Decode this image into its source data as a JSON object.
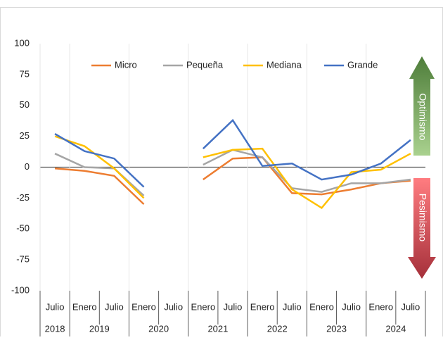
{
  "chart_data": {
    "type": "line",
    "categories": [
      "Julio",
      "Enero",
      "Julio",
      "Enero",
      "Julio",
      "Enero",
      "Julio",
      "Enero",
      "Julio",
      "Enero",
      "Julio",
      "Enero",
      "Julio"
    ],
    "category_groups": [
      {
        "label": "2018",
        "count": 1
      },
      {
        "label": "2019",
        "count": 2
      },
      {
        "label": "2020",
        "count": 2
      },
      {
        "label": "2021",
        "count": 2
      },
      {
        "label": "2022",
        "count": 2
      },
      {
        "label": "2023",
        "count": 2
      },
      {
        "label": "2024",
        "count": 2
      }
    ],
    "series": [
      {
        "name": "Micro",
        "color": "#ed7d31",
        "values": [
          -1,
          -3,
          -7,
          -30,
          null,
          -10,
          7,
          8,
          -21,
          -22,
          -18,
          -13,
          -11
        ]
      },
      {
        "name": "Pequeña",
        "color": "#a5a5a5",
        "values": [
          11,
          0,
          -1,
          -23,
          null,
          2,
          14,
          8,
          -17,
          -20,
          -13,
          -13,
          -10
        ]
      },
      {
        "name": "Mediana",
        "color": "#ffc000",
        "values": [
          25,
          17,
          -1,
          -25,
          null,
          8,
          14,
          15,
          -18,
          -33,
          -4,
          -2,
          11
        ]
      },
      {
        "name": "Grande",
        "color": "#4472c4",
        "values": [
          27,
          13,
          7,
          -16,
          null,
          15,
          38,
          1,
          3,
          -10,
          -6,
          3,
          22
        ]
      }
    ],
    "ylim": [
      -100,
      100
    ],
    "yticks": [
      -100,
      -75,
      -50,
      -25,
      0,
      25,
      50,
      75,
      100
    ],
    "annotations": [
      "Optimismo",
      "Pesimismo"
    ]
  }
}
